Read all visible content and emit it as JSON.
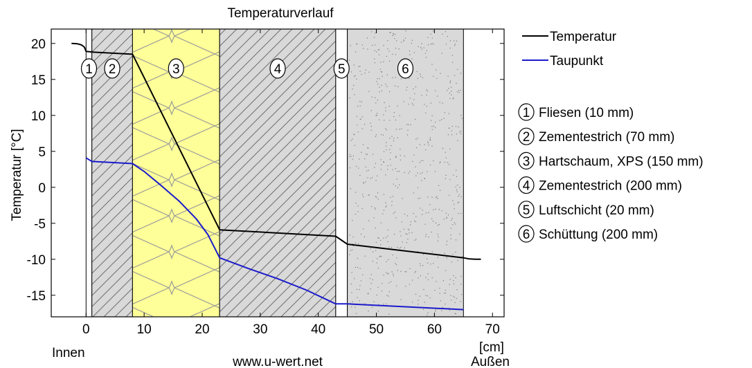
{
  "chart_data": {
    "type": "line",
    "title": "Temperaturverlauf",
    "ylabel": "Temperatur [°C]",
    "xunit": "[cm]",
    "inside_label": "Innen",
    "outside_label": "Außen",
    "source": "www.u-wert.net",
    "xlim": [
      -6,
      72
    ],
    "ylim": [
      -18,
      22
    ],
    "xticks": [
      0,
      10,
      20,
      30,
      40,
      50,
      60,
      70
    ],
    "yticks": [
      20,
      15,
      10,
      5,
      0,
      -5,
      -10,
      -15
    ],
    "legend_position": "right",
    "layers": [
      {
        "id": "1",
        "label": "Fliesen (10 mm)",
        "start": 0,
        "end": 1,
        "pattern": "plain",
        "color": "#ffffff"
      },
      {
        "id": "2",
        "label": "Zementestrich (70 mm)",
        "start": 1,
        "end": 8,
        "pattern": "hatch",
        "color": "#d9d9d9"
      },
      {
        "id": "3",
        "label": "Hartschaum, XPS (150 mm)",
        "start": 8,
        "end": 23,
        "pattern": "insulation",
        "color": "#ffff99"
      },
      {
        "id": "4",
        "label": "Zementestrich (200 mm)",
        "start": 23,
        "end": 43,
        "pattern": "hatch",
        "color": "#d9d9d9"
      },
      {
        "id": "5",
        "label": "Luftschicht (20 mm)",
        "start": 43,
        "end": 45,
        "pattern": "plain",
        "color": "#ffffff"
      },
      {
        "id": "6",
        "label": "Schüttung (200 mm)",
        "start": 45,
        "end": 65,
        "pattern": "dots",
        "color": "#d9d9d9"
      }
    ],
    "series": [
      {
        "name": "Temperatur",
        "color": "#000000",
        "x": [
          -2.5,
          -1.5,
          -0.8,
          -0.3,
          0,
          1,
          8,
          23,
          43,
          45,
          65,
          66,
          67,
          68
        ],
        "y": [
          20.0,
          19.95,
          19.8,
          19.5,
          18.9,
          18.8,
          18.5,
          -5.9,
          -6.8,
          -7.9,
          -9.8,
          -9.95,
          -10.0,
          -10.0
        ]
      },
      {
        "name": "Taupunkt",
        "color": "#1a1acc",
        "x": [
          0,
          1,
          8,
          10,
          13,
          16,
          19,
          21,
          23,
          28,
          33,
          38,
          43,
          45,
          65
        ],
        "y": [
          4.1,
          3.6,
          3.3,
          2.2,
          0.2,
          -1.9,
          -4.4,
          -6.6,
          -9.8,
          -11.3,
          -12.7,
          -14.3,
          -16.2,
          -16.2,
          -17.0
        ]
      }
    ]
  }
}
